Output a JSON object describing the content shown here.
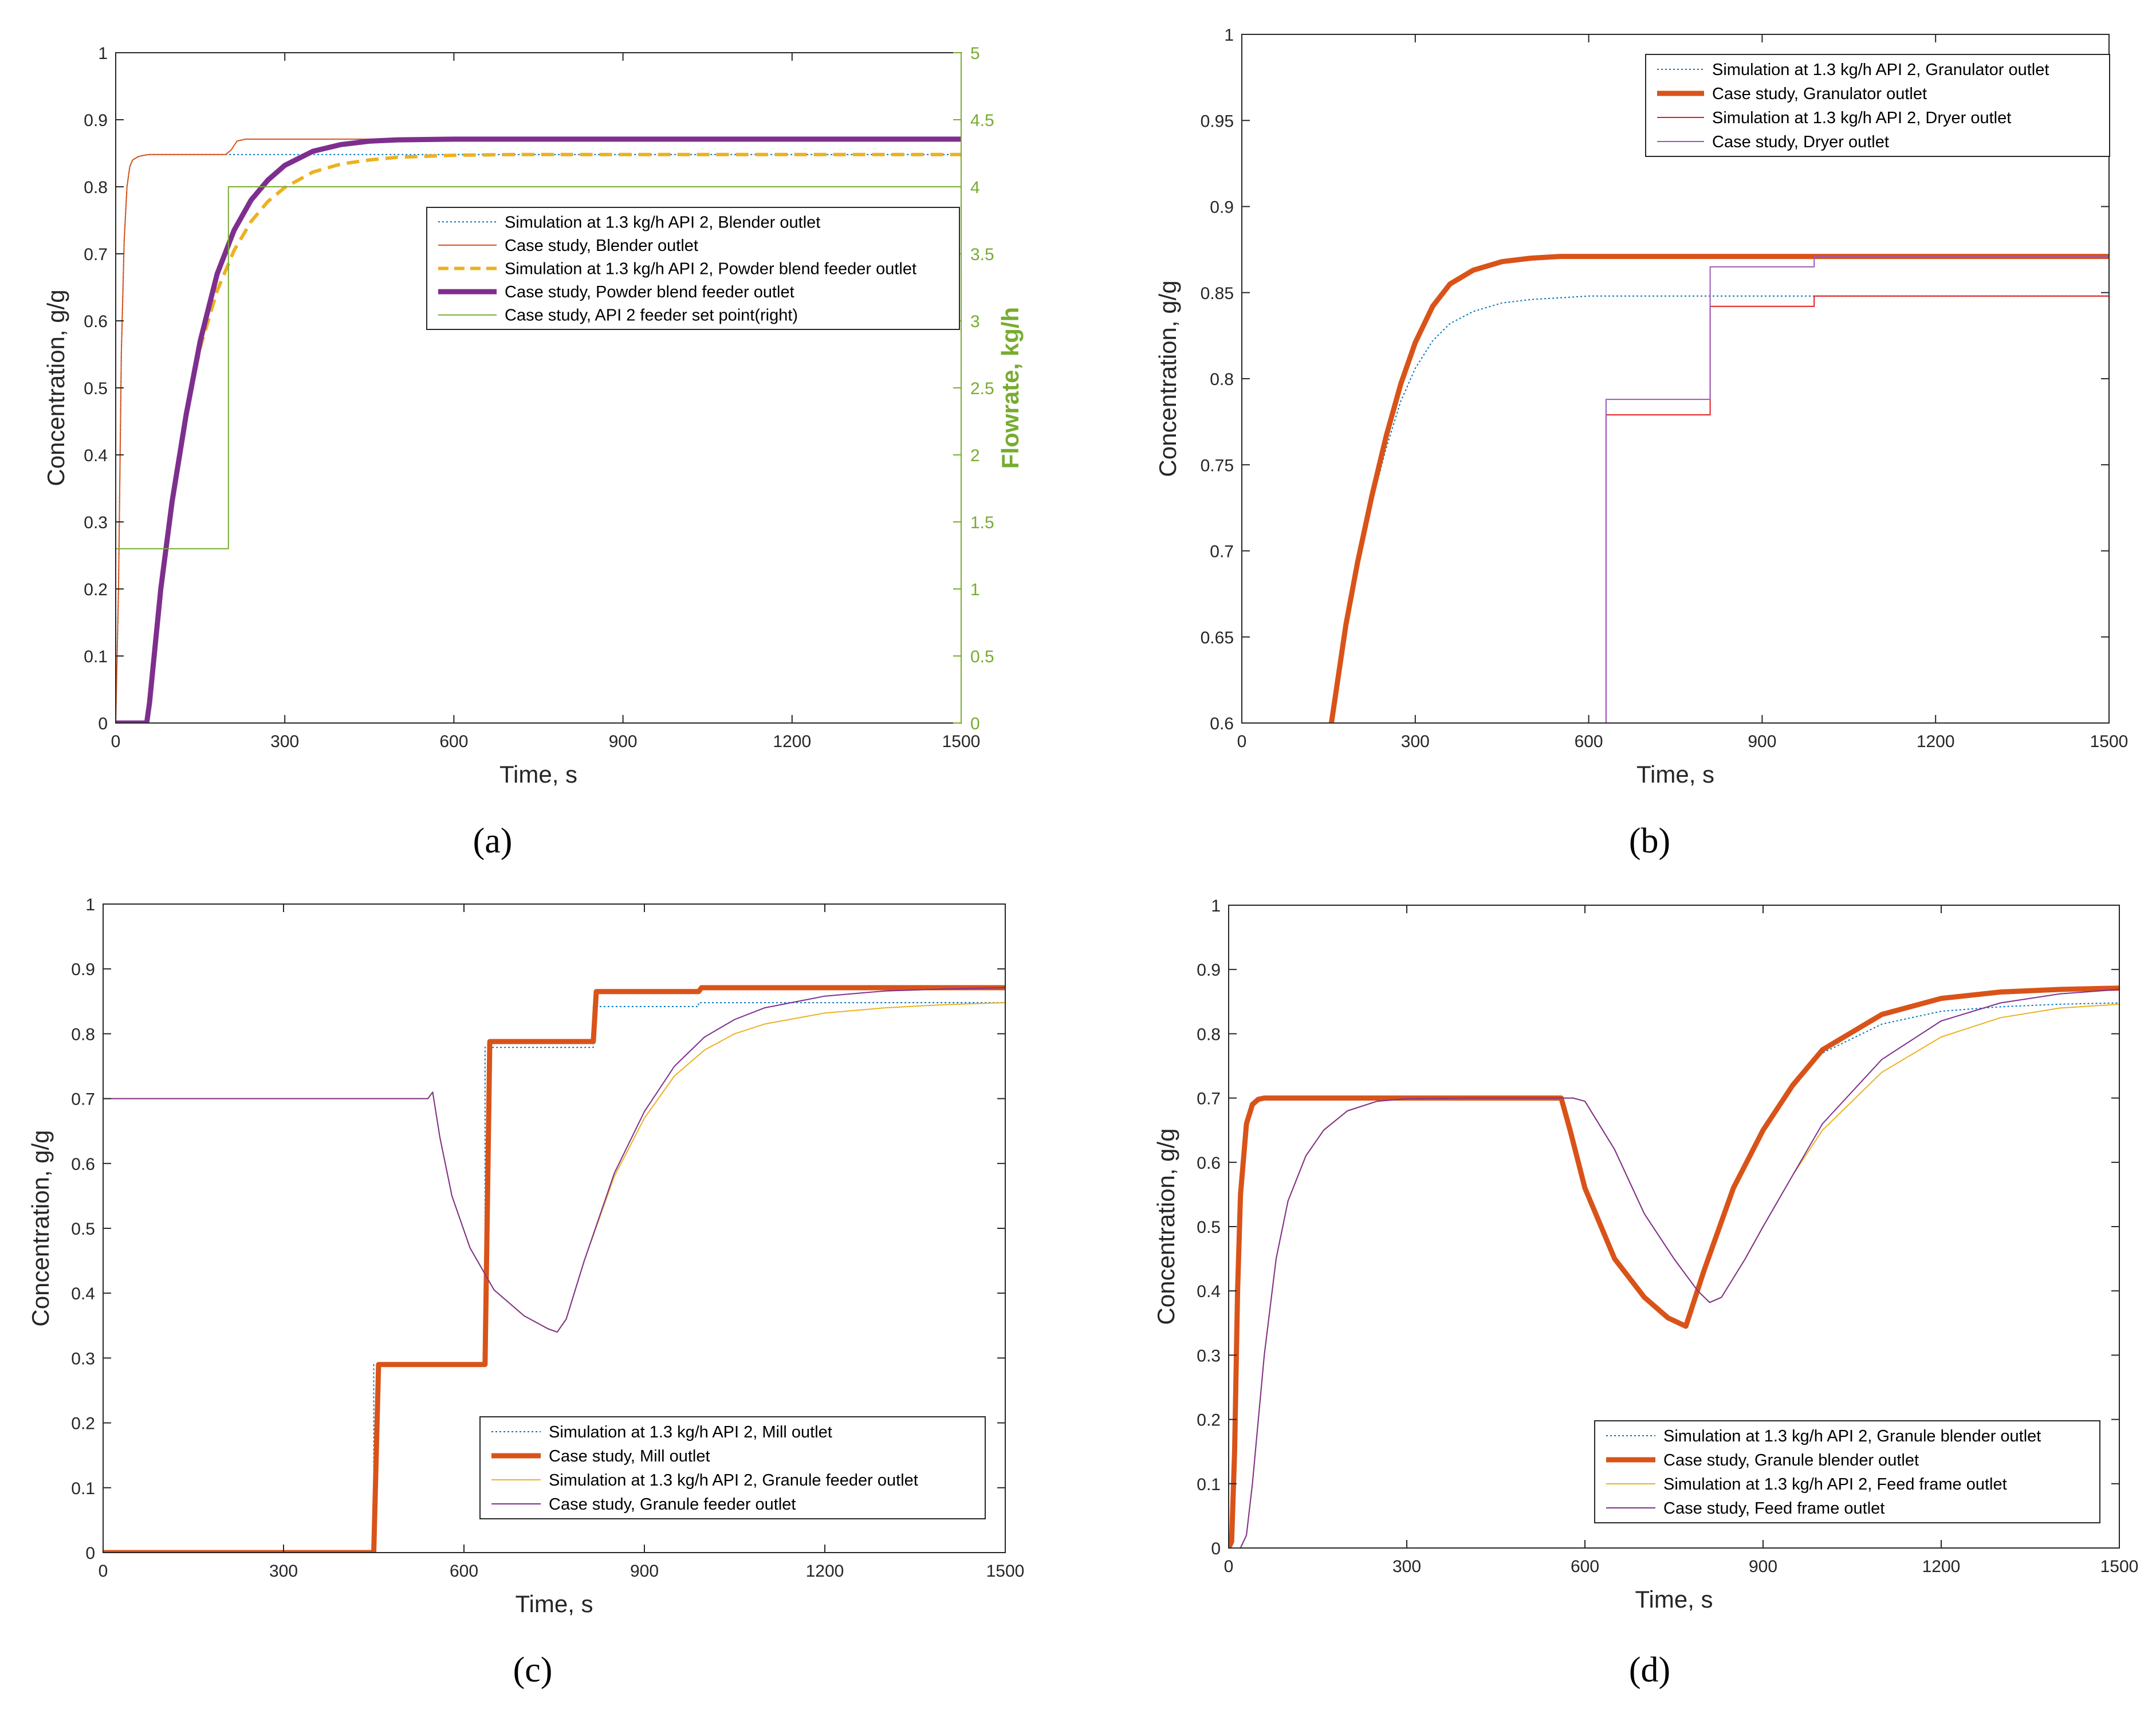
{
  "chart_data": [
    {
      "type": "line",
      "panel_label": "(a)",
      "xlabel": "Time, s",
      "ylabel": "Concentration, g/g",
      "y2label": "Flowrate, kg/h",
      "xlim": [
        0,
        1500
      ],
      "ylim": [
        0,
        1
      ],
      "y2lim": [
        0,
        5
      ],
      "xticks": [
        0,
        300,
        600,
        900,
        1200,
        1500
      ],
      "yticks": [
        0,
        0.1,
        0.2,
        0.3,
        0.4,
        0.5,
        0.6,
        0.7,
        0.8,
        0.9,
        1
      ],
      "y2ticks": [
        0,
        0.5,
        1,
        1.5,
        2,
        2.5,
        3,
        3.5,
        4,
        4.5,
        5
      ],
      "legend_position": "center-right",
      "series": [
        {
          "name": "Simulation at 1.3 kg/h API 2, Blender outlet",
          "color": "#0072bd",
          "style": "dotted",
          "width": 2,
          "x": [
            0,
            5,
            10,
            15,
            20,
            25,
            30,
            40,
            50,
            60,
            80,
            100,
            1500
          ],
          "y": [
            0,
            0.2,
            0.55,
            0.72,
            0.8,
            0.83,
            0.84,
            0.845,
            0.847,
            0.848,
            0.848,
            0.848,
            0.848
          ]
        },
        {
          "name": "Case study, Blender outlet",
          "color": "#d95319",
          "style": "solid",
          "width": 2,
          "x": [
            0,
            5,
            10,
            15,
            20,
            25,
            30,
            40,
            50,
            60,
            80,
            195,
            205,
            215,
            230,
            1500
          ],
          "y": [
            0,
            0.2,
            0.55,
            0.72,
            0.8,
            0.83,
            0.84,
            0.845,
            0.847,
            0.848,
            0.848,
            0.848,
            0.855,
            0.868,
            0.871,
            0.871
          ]
        },
        {
          "name": "Simulation at 1.3 kg/h API 2, Powder blend feeder outlet",
          "color": "#edb120",
          "style": "dashed",
          "width": 6,
          "x": [
            0,
            55,
            60,
            80,
            100,
            125,
            150,
            180,
            210,
            240,
            270,
            300,
            350,
            400,
            450,
            500,
            600,
            700,
            800,
            1500
          ],
          "y": [
            0,
            0,
            0.03,
            0.2,
            0.33,
            0.46,
            0.56,
            0.645,
            0.705,
            0.748,
            0.778,
            0.799,
            0.822,
            0.834,
            0.84,
            0.844,
            0.847,
            0.848,
            0.848,
            0.848
          ]
        },
        {
          "name": "Case study, Powder blend feeder outlet",
          "color": "#7e2f8e",
          "style": "solid",
          "width": 9,
          "x": [
            0,
            55,
            60,
            80,
            100,
            125,
            150,
            180,
            210,
            240,
            270,
            300,
            350,
            400,
            450,
            500,
            600,
            700,
            1500
          ],
          "y": [
            0,
            0,
            0.03,
            0.2,
            0.33,
            0.46,
            0.57,
            0.67,
            0.735,
            0.78,
            0.81,
            0.832,
            0.853,
            0.863,
            0.868,
            0.87,
            0.871,
            0.871,
            0.871
          ]
        },
        {
          "name": "Case study, API 2 feeder set point(right)",
          "color": "#77ac30",
          "style": "solid",
          "width": 2,
          "axis": "right",
          "x": [
            0,
            200,
            200,
            1500
          ],
          "y": [
            1.3,
            1.3,
            4.0,
            4.0
          ]
        }
      ]
    },
    {
      "type": "line",
      "panel_label": "(b)",
      "xlabel": "Time, s",
      "ylabel": "Concentration, g/g",
      "xlim": [
        0,
        1500
      ],
      "ylim": [
        0.6,
        1
      ],
      "xticks": [
        0,
        300,
        600,
        900,
        1200,
        1500
      ],
      "yticks": [
        0.6,
        0.65,
        0.7,
        0.75,
        0.8,
        0.85,
        0.9,
        0.95,
        1
      ],
      "legend_position": "top-right",
      "series": [
        {
          "name": "Simulation at 1.3 kg/h API 2, Granulator outlet",
          "color": "#0072bd",
          "style": "dotted",
          "width": 2,
          "x": [
            155,
            180,
            200,
            225,
            250,
            275,
            300,
            330,
            360,
            400,
            450,
            500,
            600,
            700,
            800,
            1500
          ],
          "y": [
            0.6,
            0.655,
            0.69,
            0.728,
            0.76,
            0.787,
            0.806,
            0.822,
            0.832,
            0.839,
            0.844,
            0.846,
            0.848,
            0.848,
            0.848,
            0.848
          ]
        },
        {
          "name": "Case study, Granulator outlet",
          "color": "#d95319",
          "style": "solid",
          "width": 9,
          "x": [
            155,
            180,
            200,
            225,
            250,
            275,
            300,
            330,
            360,
            400,
            450,
            500,
            550,
            600,
            700,
            1500
          ],
          "y": [
            0.6,
            0.657,
            0.693,
            0.732,
            0.767,
            0.797,
            0.821,
            0.842,
            0.855,
            0.863,
            0.868,
            0.87,
            0.871,
            0.871,
            0.871,
            0.871
          ]
        },
        {
          "name": "Simulation at 1.3 kg/h API 2, Dryer outlet",
          "color": "#e41a1c",
          "style": "solid",
          "width": 2,
          "x": [
            630,
            630,
            810,
            810,
            990,
            990,
            1500
          ],
          "y": [
            0.6,
            0.779,
            0.779,
            0.842,
            0.842,
            0.848,
            0.848
          ]
        },
        {
          "name": "Case study, Dryer outlet",
          "color": "#9b59b6",
          "style": "solid",
          "width": 2,
          "x": [
            630,
            630,
            810,
            810,
            990,
            990,
            1500
          ],
          "y": [
            0.6,
            0.788,
            0.788,
            0.865,
            0.865,
            0.871,
            0.871
          ]
        }
      ]
    },
    {
      "type": "line",
      "panel_label": "(c)",
      "xlabel": "Time, s",
      "ylabel": "Concentration, g/g",
      "xlim": [
        0,
        1500
      ],
      "ylim": [
        0,
        1
      ],
      "xticks": [
        0,
        300,
        600,
        900,
        1200,
        1500
      ],
      "yticks": [
        0,
        0.1,
        0.2,
        0.3,
        0.4,
        0.5,
        0.6,
        0.7,
        0.8,
        0.9,
        1
      ],
      "legend_position": "bottom-right",
      "series": [
        {
          "name": "Simulation at 1.3 kg/h API 2, Mill outlet",
          "color": "#0072bd",
          "style": "dotted",
          "width": 2,
          "x": [
            0,
            450,
            450,
            635,
            635,
            815,
            815,
            990,
            990,
            1500
          ],
          "y": [
            0,
            0,
            0.29,
            0.29,
            0.779,
            0.779,
            0.842,
            0.842,
            0.848,
            0.848
          ]
        },
        {
          "name": "Case study, Mill outlet",
          "color": "#d95319",
          "style": "solid",
          "width": 9,
          "x": [
            0,
            450,
            458,
            635,
            643,
            815,
            820,
            990,
            995,
            1500
          ],
          "y": [
            0,
            0,
            0.29,
            0.29,
            0.788,
            0.788,
            0.865,
            0.865,
            0.871,
            0.871
          ]
        },
        {
          "name": "Simulation at 1.3 kg/h API 2, Granule feeder outlet",
          "color": "#edb120",
          "style": "solid",
          "width": 2,
          "x": [
            0,
            540,
            548,
            560,
            580,
            610,
            650,
            700,
            740,
            755,
            770,
            800,
            850,
            900,
            950,
            1000,
            1050,
            1100,
            1200,
            1300,
            1400,
            1500
          ],
          "y": [
            0.7,
            0.7,
            0.71,
            0.64,
            0.55,
            0.47,
            0.405,
            0.365,
            0.345,
            0.34,
            0.36,
            0.45,
            0.58,
            0.67,
            0.735,
            0.775,
            0.8,
            0.815,
            0.832,
            0.84,
            0.845,
            0.848
          ]
        },
        {
          "name": "Case study, Granule feeder outlet",
          "color": "#7e2f8e",
          "style": "solid",
          "width": 2,
          "x": [
            0,
            540,
            548,
            560,
            580,
            610,
            650,
            700,
            740,
            755,
            770,
            800,
            850,
            900,
            950,
            1000,
            1050,
            1100,
            1200,
            1300,
            1400,
            1500
          ],
          "y": [
            0.7,
            0.7,
            0.71,
            0.64,
            0.55,
            0.47,
            0.405,
            0.365,
            0.345,
            0.34,
            0.36,
            0.45,
            0.585,
            0.68,
            0.75,
            0.795,
            0.822,
            0.84,
            0.858,
            0.866,
            0.869,
            0.871
          ]
        }
      ]
    },
    {
      "type": "line",
      "panel_label": "(d)",
      "xlabel": "Time, s",
      "ylabel": "Concentration, g/g",
      "xlim": [
        0,
        1500
      ],
      "ylim": [
        0,
        1
      ],
      "xticks": [
        0,
        300,
        600,
        900,
        1200,
        1500
      ],
      "yticks": [
        0,
        0.1,
        0.2,
        0.3,
        0.4,
        0.5,
        0.6,
        0.7,
        0.8,
        0.9,
        1
      ],
      "legend_position": "bottom-right",
      "series": [
        {
          "name": "Simulation at 1.3 kg/h API 2, Granule blender outlet",
          "color": "#0072bd",
          "style": "dotted",
          "width": 2,
          "x": [
            0,
            5,
            10,
            15,
            20,
            30,
            40,
            50,
            60,
            80,
            550,
            560,
            575,
            600,
            650,
            700,
            740,
            770,
            800,
            850,
            900,
            950,
            1000,
            1100,
            1200,
            1300,
            1400,
            1500
          ],
          "y": [
            0,
            0.01,
            0.15,
            0.4,
            0.55,
            0.66,
            0.69,
            0.698,
            0.7,
            0.7,
            0.7,
            0.7,
            0.65,
            0.56,
            0.45,
            0.39,
            0.358,
            0.345,
            0.43,
            0.56,
            0.65,
            0.72,
            0.77,
            0.815,
            0.835,
            0.842,
            0.846,
            0.848
          ]
        },
        {
          "name": "Case study, Granule blender outlet",
          "color": "#d95319",
          "style": "solid",
          "width": 9,
          "x": [
            0,
            5,
            10,
            15,
            20,
            30,
            40,
            50,
            60,
            80,
            550,
            560,
            575,
            600,
            650,
            700,
            740,
            770,
            800,
            850,
            900,
            950,
            1000,
            1100,
            1200,
            1300,
            1400,
            1500
          ],
          "y": [
            0,
            0.01,
            0.15,
            0.4,
            0.55,
            0.66,
            0.69,
            0.698,
            0.7,
            0.7,
            0.7,
            0.7,
            0.65,
            0.56,
            0.45,
            0.39,
            0.358,
            0.345,
            0.43,
            0.56,
            0.65,
            0.72,
            0.775,
            0.83,
            0.855,
            0.865,
            0.869,
            0.871
          ]
        },
        {
          "name": "Simulation at 1.3 kg/h API 2, Feed frame outlet",
          "color": "#edb120",
          "style": "solid",
          "width": 2,
          "x": [
            0,
            20,
            30,
            40,
            60,
            80,
            100,
            130,
            160,
            200,
            250,
            300,
            400,
            560,
            580,
            600,
            650,
            700,
            750,
            790,
            810,
            830,
            870,
            900,
            950,
            1000,
            1100,
            1200,
            1300,
            1400,
            1500
          ],
          "y": [
            0,
            0,
            0.02,
            0.1,
            0.3,
            0.45,
            0.54,
            0.61,
            0.65,
            0.68,
            0.695,
            0.699,
            0.7,
            0.7,
            0.7,
            0.695,
            0.62,
            0.52,
            0.45,
            0.4,
            0.382,
            0.39,
            0.45,
            0.5,
            0.58,
            0.65,
            0.74,
            0.795,
            0.825,
            0.84,
            0.846
          ]
        },
        {
          "name": "Case study, Feed frame outlet",
          "color": "#7e2f8e",
          "style": "solid",
          "width": 2,
          "x": [
            0,
            20,
            30,
            40,
            60,
            80,
            100,
            130,
            160,
            200,
            250,
            300,
            400,
            560,
            580,
            600,
            650,
            700,
            750,
            790,
            810,
            830,
            870,
            900,
            950,
            1000,
            1100,
            1200,
            1300,
            1400,
            1500
          ],
          "y": [
            0,
            0,
            0.02,
            0.1,
            0.3,
            0.45,
            0.54,
            0.61,
            0.65,
            0.68,
            0.695,
            0.699,
            0.7,
            0.7,
            0.7,
            0.695,
            0.62,
            0.52,
            0.45,
            0.4,
            0.382,
            0.39,
            0.45,
            0.5,
            0.58,
            0.66,
            0.76,
            0.82,
            0.848,
            0.862,
            0.869
          ]
        }
      ]
    }
  ]
}
